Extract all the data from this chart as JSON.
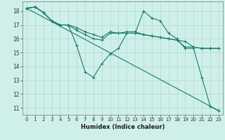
{
  "xlabel": "Humidex (Indice chaleur)",
  "bg_color": "#cff0ea",
  "grid_color": "#b0d8d0",
  "line_color": "#1a7a6a",
  "xlim": [
    -0.5,
    23.5
  ],
  "ylim": [
    10.5,
    18.7
  ],
  "xticks": [
    0,
    1,
    2,
    3,
    4,
    5,
    6,
    7,
    8,
    9,
    10,
    11,
    12,
    13,
    14,
    15,
    16,
    17,
    18,
    19,
    20,
    21,
    22,
    23
  ],
  "yticks": [
    11,
    12,
    13,
    14,
    15,
    16,
    17,
    18
  ],
  "series1": {
    "x": [
      0,
      1,
      2,
      3,
      4,
      5,
      6,
      7,
      8,
      9,
      10,
      11,
      12,
      13,
      14,
      15,
      16,
      17,
      18,
      19,
      20,
      21,
      22,
      23
    ],
    "y": [
      18.2,
      18.3,
      17.9,
      17.3,
      17.0,
      17.0,
      15.5,
      13.6,
      13.2,
      14.2,
      14.9,
      15.3,
      16.4,
      16.4,
      18.0,
      17.5,
      17.3,
      16.4,
      16.0,
      15.3,
      15.3,
      13.2,
      11.1,
      10.8
    ]
  },
  "series2": {
    "x": [
      0,
      1,
      2,
      3,
      4,
      5,
      6,
      7,
      8,
      9,
      10,
      11,
      12,
      13,
      14,
      15,
      16,
      17,
      18,
      19,
      20,
      21,
      22,
      23
    ],
    "y": [
      18.2,
      18.3,
      17.9,
      17.3,
      17.0,
      17.0,
      16.6,
      16.3,
      16.0,
      15.9,
      16.4,
      16.4,
      16.4,
      16.4,
      16.3,
      16.2,
      16.1,
      16.0,
      15.9,
      15.8,
      15.4,
      15.3,
      15.3,
      15.3
    ]
  },
  "series3": {
    "x": [
      0,
      23
    ],
    "y": [
      18.2,
      10.8
    ]
  },
  "series4": {
    "x": [
      0,
      1,
      2,
      3,
      4,
      5,
      6,
      7,
      8,
      9,
      10,
      11,
      12,
      13,
      14,
      15,
      16,
      17,
      18,
      19,
      20,
      21,
      22,
      23
    ],
    "y": [
      18.2,
      18.3,
      17.9,
      17.3,
      17.0,
      17.0,
      16.8,
      16.5,
      16.3,
      16.1,
      16.5,
      16.4,
      16.5,
      16.5,
      16.3,
      16.2,
      16.1,
      16.0,
      15.9,
      15.4,
      15.4,
      15.3,
      15.3,
      15.3
    ]
  }
}
